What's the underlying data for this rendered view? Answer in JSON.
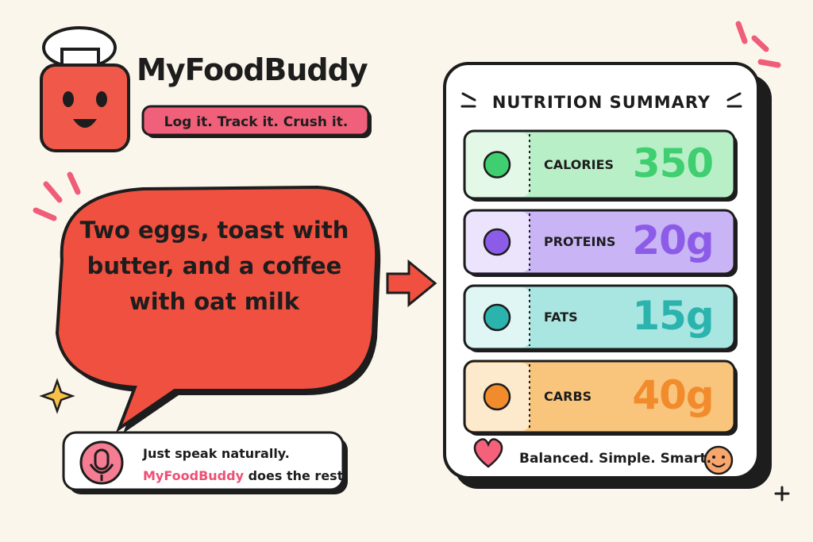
{
  "brand": {
    "name": "MyFoodBuddy",
    "tagline": "Log it. Track it. Crush it."
  },
  "speech": {
    "text": "Two eggs, toast with butter, and a coffee with oat milk"
  },
  "voice": {
    "line1": "Just speak naturally.",
    "brand": "MyFoodBuddy",
    "line2": "does the rest!"
  },
  "summary": {
    "title": "NUTRITION SUMMARY",
    "rows": [
      {
        "label": "CALORIES",
        "value": "350"
      },
      {
        "label": "PROTEINS",
        "value": "20g"
      },
      {
        "label": "FATS",
        "value": "15g"
      },
      {
        "label": "CARBS",
        "value": "40g"
      }
    ],
    "footer": "Balanced. Simple. Smart."
  }
}
